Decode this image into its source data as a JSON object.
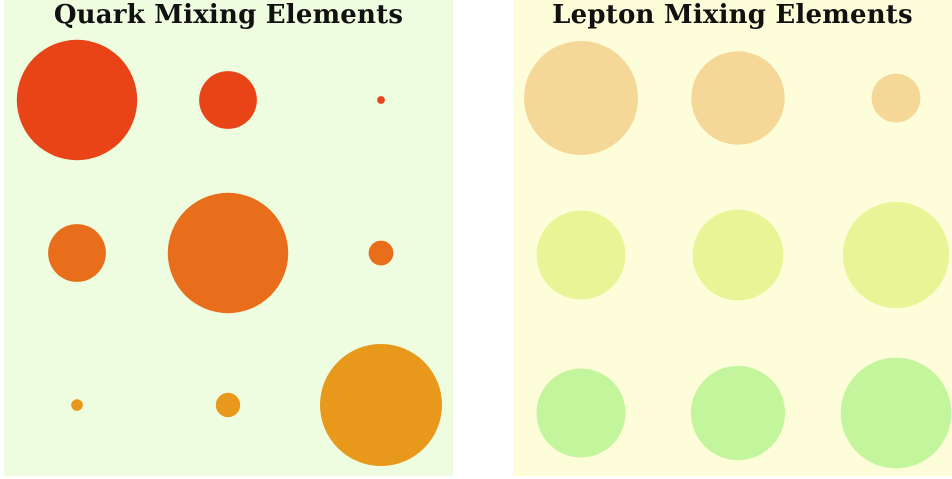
{
  "quark": {
    "title": "Quark Mixing Elements",
    "background": "#eefddf",
    "rows": [
      {
        "colors": [
          "#e84418",
          "#e84418",
          "#e84418"
        ],
        "magnitudes": [
          0.974,
          0.225,
          0.004
        ]
      },
      {
        "colors": [
          "#e86e1c",
          "#e86e1c",
          "#e86e1c"
        ],
        "magnitudes": [
          0.225,
          0.973,
          0.041
        ]
      },
      {
        "colors": [
          "#e8981a",
          "#e8981a",
          "#e8981a"
        ],
        "magnitudes": [
          0.009,
          0.04,
          0.999
        ]
      }
    ]
  },
  "lepton": {
    "title": "Lepton Mixing Elements",
    "background": "#fdfdd9",
    "rows": [
      {
        "colors": [
          "#f5d898",
          "#f5d898",
          "#f5d898"
        ],
        "magnitudes": [
          0.82,
          0.55,
          0.15
        ]
      },
      {
        "colors": [
          "#e8f596",
          "#e8f596",
          "#e8f596"
        ],
        "magnitudes": [
          0.5,
          0.52,
          0.71
        ]
      },
      {
        "colors": [
          "#c3f59c",
          "#c3f59c",
          "#c3f59c"
        ],
        "magnitudes": [
          0.5,
          0.56,
          0.77
        ]
      }
    ]
  }
}
